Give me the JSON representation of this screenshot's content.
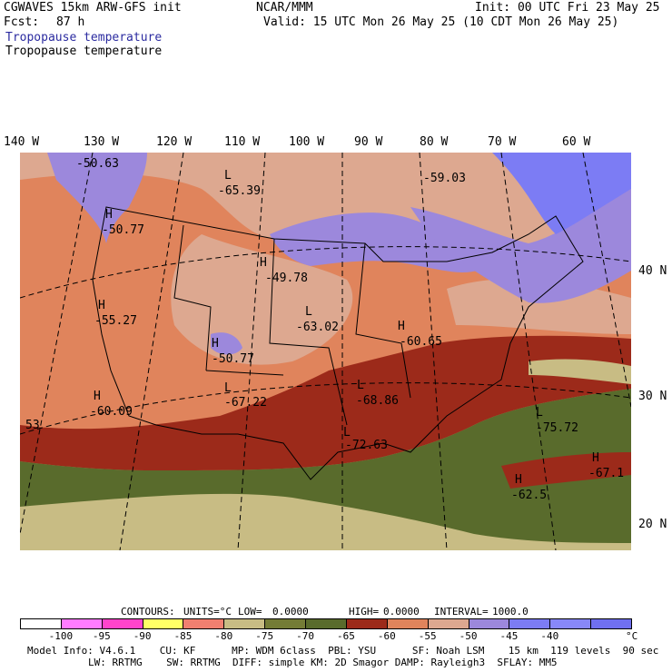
{
  "header": {
    "model": "CGWAVES 15km ARW-GFS init",
    "org": "NCAR/MMM",
    "init": "Init: 00 UTC Fri 23 May 25",
    "fcst_label": "Fcst:",
    "fcst_value": "87 h",
    "valid": "Valid: 15 UTC Mon 26 May 25 (10 CDT Mon 26 May 25)",
    "title_blue": "Tropopause temperature",
    "title_black": "Tropopause temperature"
  },
  "longitude_labels": [
    "140 W",
    "130 W",
    "120 W",
    "110 W",
    "100 W",
    "90 W",
    "80 W",
    "70 W",
    "60 W"
  ],
  "latitude_labels": [
    "40 N",
    "30 N",
    "20 N"
  ],
  "map_labels": [
    {
      "name": "low-label-1",
      "type": "",
      "value": "-50.63"
    },
    {
      "name": "low-label-2",
      "type": "L",
      "value": "-65.39"
    },
    {
      "name": "low-label-3",
      "type": "",
      "value": "-59.03"
    },
    {
      "name": "high-label-1",
      "type": "H",
      "value": "-50.77"
    },
    {
      "name": "high-label-2",
      "type": "H",
      "value": "-49.78"
    },
    {
      "name": "high-label-3",
      "type": "H",
      "value": "-55.27"
    },
    {
      "name": "low-label-4",
      "type": "L",
      "value": "-63.02"
    },
    {
      "name": "high-label-4",
      "type": "H",
      "value": "-60.65"
    },
    {
      "name": "high-label-5",
      "type": "H",
      "value": "-50.77"
    },
    {
      "name": "low-label-5",
      "type": "L",
      "value": "-67.22"
    },
    {
      "name": "low-label-6",
      "type": "L",
      "value": "-68.86"
    },
    {
      "name": "high-label-6",
      "type": "H",
      "value": "-60.09"
    },
    {
      "name": "low-label-7",
      "type": "L",
      "value": "-75.72"
    },
    {
      "name": "label-west",
      "type": "",
      "value": "53"
    },
    {
      "name": "low-label-8",
      "type": "L",
      "value": "-72.63"
    },
    {
      "name": "high-label-7",
      "type": "H",
      "value": "-67.1"
    },
    {
      "name": "high-label-8",
      "type": "H",
      "value": "-62.5"
    }
  ],
  "contours_line": {
    "contours": "CONTOURS:",
    "units": "UNITS=°C",
    "low": "LOW=",
    "low_value": "0.0000",
    "high": "HIGH=",
    "high_value": "0.0000",
    "interval": "INTERVAL=",
    "interval_value": "1000.0"
  },
  "colorbar": {
    "colors": [
      "#ffffff",
      "#ff7cff",
      "#ff44cc",
      "#ffff66",
      "#f08070",
      "#c8bc84",
      "#747c36",
      "#596b2c",
      "#9c2a1a",
      "#e0845c",
      "#dda890",
      "#9c88dc",
      "#7c7cf4",
      "#8888f8",
      "#7070f0"
    ],
    "ticks": [
      "-100",
      "-95",
      "-90",
      "-85",
      "-80",
      "-75",
      "-70",
      "-65",
      "-60",
      "-55",
      "-50",
      "-45",
      "-40"
    ],
    "unit": "°C"
  },
  "footer": {
    "line1": "Model Info: V4.6.1    CU: KF      MP: WDM 6class  PBL: YSU      SF: Noah LSM    15 km  119 levels  90 sec",
    "line2": "LW: RRTMG    SW: RRTMG  DIFF: simple KM: 2D Smagor DAMP: Rayleigh3  SFLAY: MM5"
  }
}
